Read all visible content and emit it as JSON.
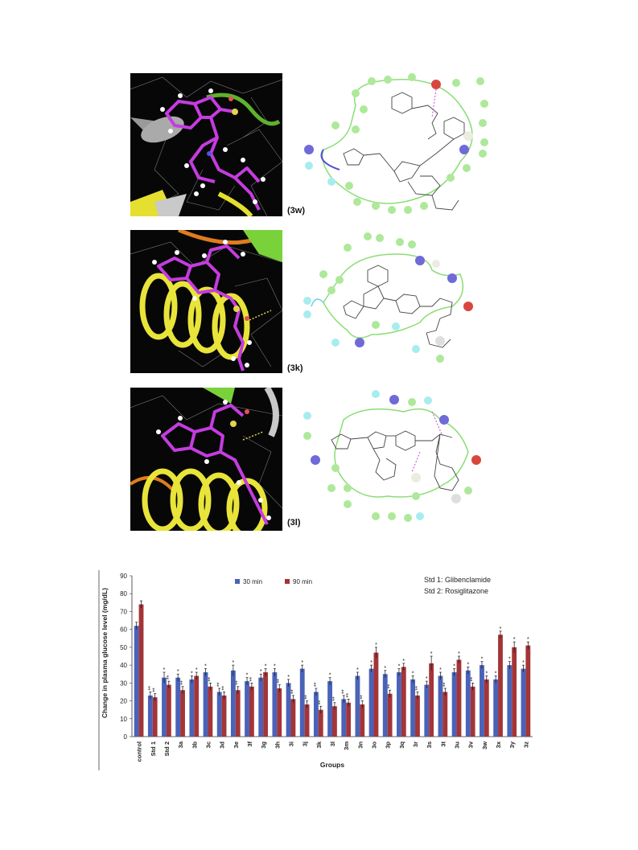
{
  "figure": {
    "panels": [
      {
        "id": "3w",
        "label": "(3w)"
      },
      {
        "id": "3k",
        "label": "(3k)"
      },
      {
        "id": "3l",
        "label": "(3l)"
      }
    ],
    "colors": {
      "ligand": "#c53ce0",
      "helix": "#e8e43a",
      "background": "#070707",
      "residue_green": "#aee89a",
      "residue_cyan": "#a8ecef",
      "residue_purple": "#6f6ad8",
      "residue_red": "#d8473f"
    }
  },
  "chart_data": {
    "type": "bar",
    "ylabel": "Change in plasma glucose level (mg/dL)",
    "xlabel": "Groups",
    "ylim": [
      0,
      90
    ],
    "yticks": [
      0,
      10,
      20,
      30,
      40,
      50,
      60,
      70,
      80,
      90
    ],
    "grid": false,
    "legend_position": "top",
    "notes": [
      "Std 1: Glibenclamide",
      "Std 2: Rosiglitazone"
    ],
    "categories": [
      "control",
      "Std 1",
      "Std 2",
      "3a",
      "3b",
      "3c",
      "3d",
      "3e",
      "3f",
      "3g",
      "3h",
      "3i",
      "3j",
      "3k",
      "3l",
      "3m",
      "3n",
      "3o",
      "3p",
      "3q",
      "3r",
      "3s",
      "3t",
      "3u",
      "3v",
      "3w",
      "3x",
      "3y",
      "3z"
    ],
    "series": [
      {
        "name": "30 min",
        "color": "#4a63b8",
        "values": [
          62,
          23,
          33,
          33,
          32,
          36,
          25,
          37,
          31,
          33,
          36,
          30,
          38,
          25,
          31,
          21,
          34,
          38,
          35,
          36,
          32,
          29,
          34,
          36,
          37,
          40,
          32,
          40,
          38
        ],
        "errors": [
          2,
          2,
          3,
          2,
          2,
          2,
          2,
          3,
          2,
          2,
          2,
          2,
          2,
          2,
          2,
          2,
          2,
          2,
          2,
          2,
          2,
          2,
          2,
          2,
          2,
          2,
          2,
          2,
          2
        ]
      },
      {
        "name": "90 min",
        "color": "#a33538",
        "values": [
          74,
          22,
          29,
          26,
          34,
          28,
          23,
          26,
          28,
          36,
          27,
          21,
          18,
          15,
          17,
          19,
          18,
          47,
          24,
          39,
          23,
          41,
          25,
          43,
          28,
          32,
          57,
          50,
          51
        ],
        "errors": [
          2,
          2,
          2,
          2,
          2,
          2,
          2,
          2,
          2,
          2,
          2,
          2,
          2,
          2,
          2,
          2,
          2,
          3,
          2,
          2,
          2,
          4,
          2,
          2,
          2,
          2,
          2,
          3,
          2
        ]
      }
    ],
    "significance_markers": [
      "*",
      "**"
    ]
  }
}
